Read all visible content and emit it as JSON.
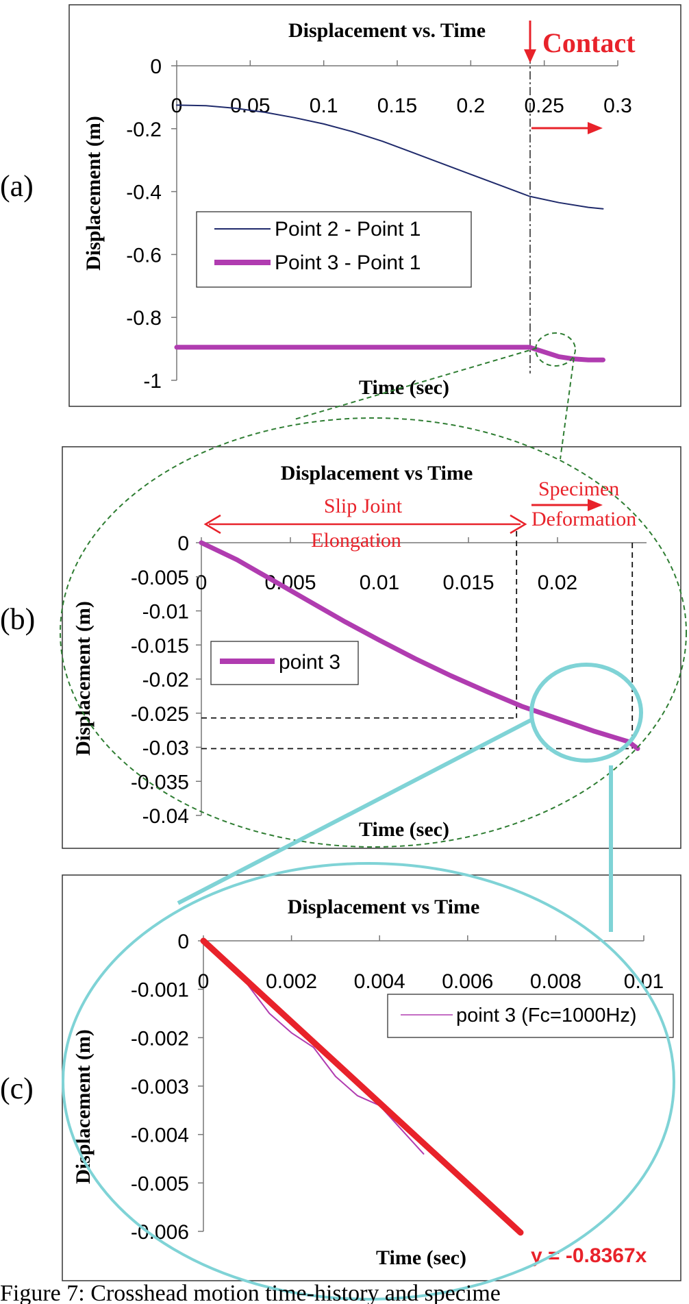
{
  "caption": "Figure 7: Crosshead motion time-history and specime",
  "colors": {
    "series_a1": "#1f2a6b",
    "series_purple": "#b03cb0",
    "red": "#e8222a",
    "green_dashed": "#2e7d32",
    "cyan": "#7fd3d6"
  },
  "chart_data": [
    {
      "type": "line",
      "panel_label": "(a)",
      "title": "Displacement vs. Time",
      "xlabel": "Time (sec)",
      "ylabel": "Displacement (m)",
      "xlim": [
        0,
        0.3
      ],
      "ylim": [
        -1,
        0
      ],
      "x_ticks": [
        "0",
        "0.05",
        "0.1",
        "0.15",
        "0.2",
        "0.25",
        "0.3"
      ],
      "y_ticks": [
        "0",
        "-0.2",
        "-0.4",
        "-0.6",
        "-0.8",
        "-1"
      ],
      "legend": [
        "Point 2 - Point 1",
        "Point 3 - Point 1"
      ],
      "annotation": "Contact",
      "contact_time": 0.24,
      "series": [
        {
          "name": "Point 2 - Point 1",
          "x": [
            0,
            0.02,
            0.04,
            0.06,
            0.08,
            0.1,
            0.12,
            0.14,
            0.16,
            0.18,
            0.2,
            0.22,
            0.24,
            0.26,
            0.28,
            0.29
          ],
          "y": [
            -0.125,
            -0.127,
            -0.135,
            -0.148,
            -0.165,
            -0.185,
            -0.21,
            -0.24,
            -0.275,
            -0.31,
            -0.345,
            -0.38,
            -0.415,
            -0.435,
            -0.45,
            -0.455
          ]
        },
        {
          "name": "Point 3 - Point 1",
          "x": [
            0,
            0.05,
            0.1,
            0.15,
            0.2,
            0.24,
            0.25,
            0.26,
            0.27,
            0.28,
            0.29
          ],
          "y": [
            -0.895,
            -0.895,
            -0.895,
            -0.895,
            -0.895,
            -0.895,
            -0.91,
            -0.925,
            -0.932,
            -0.935,
            -0.935
          ]
        }
      ]
    },
    {
      "type": "line",
      "panel_label": "(b)",
      "title": "Displacement vs Time",
      "xlabel": "Time (sec)",
      "ylabel": "Displacement (m)",
      "xlim": [
        0,
        0.025
      ],
      "ylim": [
        -0.04,
        0
      ],
      "x_ticks": [
        "0",
        "0.005",
        "0.01",
        "0.015",
        "0.02"
      ],
      "y_ticks": [
        "0",
        "-0.005",
        "-0.01",
        "-0.015",
        "-0.02",
        "-0.025",
        "-0.03",
        "-0.035",
        "-0.04"
      ],
      "legend": [
        "point 3"
      ],
      "annotations": [
        "Slip Joint",
        "Elongation",
        "Specimen",
        "Deformation"
      ],
      "markers": {
        "slip_end_x": 0.0177,
        "slip_end_y": -0.0257,
        "def_end_x": 0.0242,
        "def_end_y": -0.0302
      },
      "series": [
        {
          "name": "point 3",
          "x": [
            0,
            0.002,
            0.004,
            0.006,
            0.008,
            0.01,
            0.012,
            0.014,
            0.016,
            0.018,
            0.02,
            0.022,
            0.024,
            0.0245
          ],
          "y": [
            0,
            -0.0025,
            -0.0055,
            -0.0085,
            -0.0115,
            -0.0143,
            -0.017,
            -0.0195,
            -0.0218,
            -0.024,
            -0.0258,
            -0.0276,
            -0.0292,
            -0.0302
          ]
        }
      ]
    },
    {
      "type": "line",
      "panel_label": "(c)",
      "title": "Displacement vs Time",
      "xlabel": "Time (sec)",
      "ylabel": "Displacement (m)",
      "xlim": [
        0,
        0.01
      ],
      "ylim": [
        -0.006,
        0
      ],
      "x_ticks": [
        "0",
        "0.002",
        "0.004",
        "0.006",
        "0.008",
        "0.01"
      ],
      "y_ticks": [
        "0",
        "-0.001",
        "-0.002",
        "-0.003",
        "-0.004",
        "-0.005",
        "-0.006"
      ],
      "legend": [
        "point 3 (Fc=1000Hz)"
      ],
      "trendline_label": "y = -0.8367x",
      "trendline_slope": -0.8367,
      "series": [
        {
          "name": "point 3 (Fc=1000Hz)",
          "x": [
            0,
            0.0005,
            0.001,
            0.0015,
            0.002,
            0.0025,
            0.003,
            0.0035,
            0.004,
            0.0045,
            0.005
          ],
          "y": [
            0,
            -0.0004,
            -0.0009,
            -0.0015,
            -0.0019,
            -0.0022,
            -0.0028,
            -0.0032,
            -0.0034,
            -0.0039,
            -0.0044
          ]
        },
        {
          "name": "trendline",
          "x": [
            0,
            0.0072
          ],
          "y": [
            0,
            -0.006024
          ]
        }
      ]
    }
  ]
}
